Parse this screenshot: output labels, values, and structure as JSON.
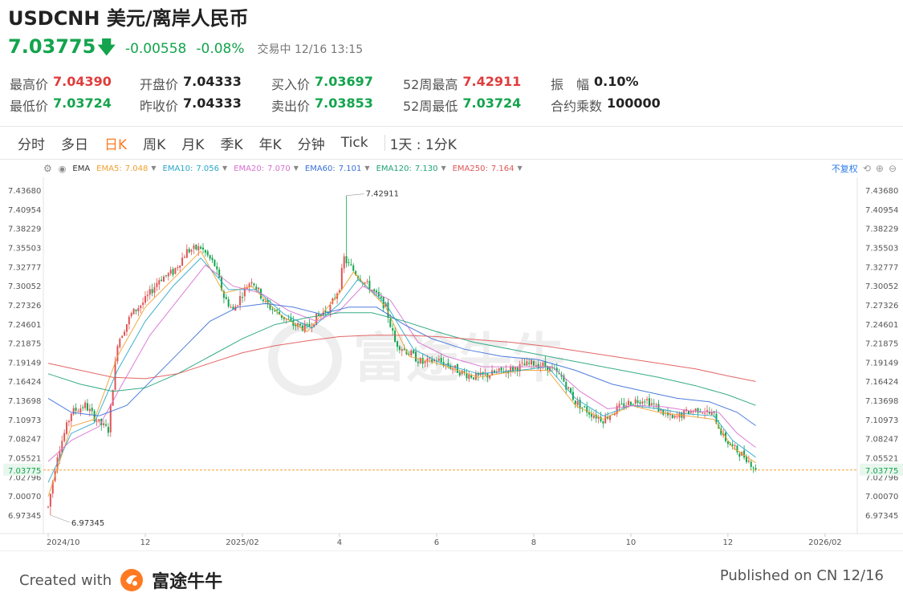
{
  "header": {
    "title": "USDCNH 美元/离岸人民币",
    "price": "7.03775",
    "change": "-0.00558",
    "change_pct": "-0.08%",
    "status": "交易中 12/16 13:15"
  },
  "stats": {
    "row1": [
      {
        "label": "最高价",
        "value": "7.04390",
        "color": "red"
      },
      {
        "label": "开盘价",
        "value": "7.04333",
        "color": "black"
      },
      {
        "label": "买入价",
        "value": "7.03697",
        "color": "green"
      },
      {
        "label": "52周最高",
        "value": "7.42911",
        "color": "red"
      },
      {
        "label": "振　幅",
        "value": "0.10%",
        "color": "black"
      }
    ],
    "row2": [
      {
        "label": "最低价",
        "value": "7.03724",
        "color": "green"
      },
      {
        "label": "昨收价",
        "value": "7.04333",
        "color": "black"
      },
      {
        "label": "卖出价",
        "value": "7.03853",
        "color": "green"
      },
      {
        "label": "52周最低",
        "value": "7.03724",
        "color": "green"
      },
      {
        "label": "合约乘数",
        "value": "100000",
        "color": "black"
      }
    ]
  },
  "tabs": [
    "分时",
    "多日",
    "日K",
    "周K",
    "月K",
    "季K",
    "年K",
    "分钟",
    "Tick"
  ],
  "active_tab": "日K",
  "range_tab": "1天 : 1分K",
  "indicators": {
    "main": "EMA",
    "items": [
      {
        "label": "EMA5:",
        "value": "7.048",
        "color": "#f0a030"
      },
      {
        "label": "EMA10:",
        "value": "7.056",
        "color": "#2aa7c9"
      },
      {
        "label": "EMA20:",
        "value": "7.070",
        "color": "#d86fd0"
      },
      {
        "label": "EMA60:",
        "value": "7.101",
        "color": "#3a6fd8"
      },
      {
        "label": "EMA120:",
        "value": "7.130",
        "color": "#1fa37a"
      },
      {
        "label": "EMA250:",
        "value": "7.164",
        "color": "#e05555"
      }
    ],
    "adjust": "不复权"
  },
  "chart_data": {
    "type": "candlestick",
    "y_ticks": [
      "7.43680",
      "7.40954",
      "7.38229",
      "7.35503",
      "7.32777",
      "7.30052",
      "7.27326",
      "7.24601",
      "7.21875",
      "7.19149",
      "7.16424",
      "7.13698",
      "7.10973",
      "7.08247",
      "7.05521",
      "7.02796",
      "7.00070",
      "6.97345"
    ],
    "ylim": [
      6.97345,
      7.4368
    ],
    "x_ticks": [
      {
        "label": "2024/10",
        "idx": 0
      },
      {
        "label": "12",
        "idx": 42
      },
      {
        "label": "2025/02",
        "idx": 84
      },
      {
        "label": "4",
        "idx": 126
      },
      {
        "label": "6",
        "idx": 168
      },
      {
        "label": "8",
        "idx": 210
      },
      {
        "label": "10",
        "idx": 252
      },
      {
        "label": "12",
        "idx": 294
      },
      {
        "label": "2026/02",
        "idx": 336
      }
    ],
    "n_slots": 352,
    "current_price": "7.03775",
    "max_label": "7.42911",
    "min_label": "6.97345",
    "current_value": 7.03775,
    "colors": {
      "up": "#e05555",
      "down": "#14a44d"
    },
    "candle_path": [
      [
        0,
        6.985
      ],
      [
        4,
        7.06
      ],
      [
        10,
        7.12
      ],
      [
        16,
        7.13
      ],
      [
        22,
        7.105
      ],
      [
        26,
        7.095
      ],
      [
        30,
        7.22
      ],
      [
        36,
        7.26
      ],
      [
        42,
        7.28
      ],
      [
        48,
        7.31
      ],
      [
        54,
        7.32
      ],
      [
        60,
        7.35
      ],
      [
        66,
        7.355
      ],
      [
        72,
        7.33
      ],
      [
        76,
        7.285
      ],
      [
        80,
        7.265
      ],
      [
        84,
        7.29
      ],
      [
        88,
        7.31
      ],
      [
        94,
        7.275
      ],
      [
        100,
        7.26
      ],
      [
        106,
        7.245
      ],
      [
        112,
        7.24
      ],
      [
        116,
        7.255
      ],
      [
        122,
        7.27
      ],
      [
        126,
        7.3
      ],
      [
        128,
        7.34
      ],
      [
        130,
        7.33
      ],
      [
        134,
        7.315
      ],
      [
        140,
        7.295
      ],
      [
        146,
        7.27
      ],
      [
        150,
        7.22
      ],
      [
        156,
        7.205
      ],
      [
        162,
        7.19
      ],
      [
        168,
        7.195
      ],
      [
        174,
        7.185
      ],
      [
        180,
        7.175
      ],
      [
        186,
        7.17
      ],
      [
        192,
        7.175
      ],
      [
        198,
        7.18
      ],
      [
        204,
        7.185
      ],
      [
        210,
        7.19
      ],
      [
        216,
        7.185
      ],
      [
        222,
        7.17
      ],
      [
        228,
        7.135
      ],
      [
        234,
        7.12
      ],
      [
        240,
        7.11
      ],
      [
        246,
        7.125
      ],
      [
        252,
        7.135
      ],
      [
        258,
        7.14
      ],
      [
        264,
        7.125
      ],
      [
        270,
        7.11
      ],
      [
        276,
        7.12
      ],
      [
        282,
        7.125
      ],
      [
        288,
        7.115
      ],
      [
        292,
        7.085
      ],
      [
        296,
        7.07
      ],
      [
        302,
        7.055
      ],
      [
        306,
        7.04
      ]
    ],
    "ema_lines": [
      {
        "name": "EMA5",
        "color": "#f0a030",
        "points": [
          [
            0,
            7.0
          ],
          [
            10,
            7.1
          ],
          [
            20,
            7.11
          ],
          [
            30,
            7.2
          ],
          [
            42,
            7.27
          ],
          [
            54,
            7.31
          ],
          [
            66,
            7.35
          ],
          [
            76,
            7.29
          ],
          [
            88,
            7.3
          ],
          [
            100,
            7.26
          ],
          [
            112,
            7.235
          ],
          [
            126,
            7.29
          ],
          [
            132,
            7.32
          ],
          [
            146,
            7.27
          ],
          [
            156,
            7.2
          ],
          [
            168,
            7.19
          ],
          [
            186,
            7.17
          ],
          [
            204,
            7.18
          ],
          [
            216,
            7.18
          ],
          [
            228,
            7.13
          ],
          [
            240,
            7.11
          ],
          [
            252,
            7.13
          ],
          [
            264,
            7.12
          ],
          [
            276,
            7.115
          ],
          [
            288,
            7.11
          ],
          [
            296,
            7.07
          ],
          [
            306,
            7.048
          ]
        ]
      },
      {
        "name": "EMA10",
        "color": "#2aa7c9",
        "points": [
          [
            0,
            7.02
          ],
          [
            10,
            7.09
          ],
          [
            20,
            7.105
          ],
          [
            30,
            7.18
          ],
          [
            42,
            7.25
          ],
          [
            54,
            7.3
          ],
          [
            66,
            7.34
          ],
          [
            78,
            7.295
          ],
          [
            90,
            7.295
          ],
          [
            102,
            7.26
          ],
          [
            114,
            7.24
          ],
          [
            126,
            7.275
          ],
          [
            134,
            7.31
          ],
          [
            146,
            7.275
          ],
          [
            158,
            7.21
          ],
          [
            170,
            7.19
          ],
          [
            186,
            7.175
          ],
          [
            204,
            7.18
          ],
          [
            216,
            7.185
          ],
          [
            228,
            7.14
          ],
          [
            240,
            7.115
          ],
          [
            252,
            7.13
          ],
          [
            264,
            7.125
          ],
          [
            276,
            7.118
          ],
          [
            288,
            7.115
          ],
          [
            296,
            7.08
          ],
          [
            306,
            7.056
          ]
        ]
      },
      {
        "name": "EMA20",
        "color": "#d86fd0",
        "points": [
          [
            0,
            7.05
          ],
          [
            10,
            7.08
          ],
          [
            22,
            7.1
          ],
          [
            32,
            7.16
          ],
          [
            44,
            7.23
          ],
          [
            56,
            7.28
          ],
          [
            68,
            7.33
          ],
          [
            80,
            7.3
          ],
          [
            92,
            7.29
          ],
          [
            104,
            7.265
          ],
          [
            116,
            7.25
          ],
          [
            126,
            7.265
          ],
          [
            136,
            7.3
          ],
          [
            148,
            7.28
          ],
          [
            160,
            7.22
          ],
          [
            172,
            7.2
          ],
          [
            188,
            7.185
          ],
          [
            204,
            7.185
          ],
          [
            218,
            7.185
          ],
          [
            230,
            7.15
          ],
          [
            242,
            7.125
          ],
          [
            254,
            7.13
          ],
          [
            266,
            7.128
          ],
          [
            278,
            7.122
          ],
          [
            290,
            7.12
          ],
          [
            298,
            7.09
          ],
          [
            306,
            7.07
          ]
        ]
      },
      {
        "name": "EMA60",
        "color": "#3a6fd8",
        "points": [
          [
            0,
            7.14
          ],
          [
            10,
            7.12
          ],
          [
            22,
            7.115
          ],
          [
            34,
            7.13
          ],
          [
            46,
            7.17
          ],
          [
            58,
            7.21
          ],
          [
            70,
            7.25
          ],
          [
            82,
            7.27
          ],
          [
            94,
            7.275
          ],
          [
            106,
            7.27
          ],
          [
            118,
            7.26
          ],
          [
            130,
            7.27
          ],
          [
            142,
            7.27
          ],
          [
            154,
            7.245
          ],
          [
            166,
            7.225
          ],
          [
            180,
            7.21
          ],
          [
            196,
            7.2
          ],
          [
            212,
            7.195
          ],
          [
            228,
            7.18
          ],
          [
            244,
            7.16
          ],
          [
            258,
            7.15
          ],
          [
            272,
            7.14
          ],
          [
            286,
            7.135
          ],
          [
            298,
            7.12
          ],
          [
            306,
            7.101
          ]
        ]
      },
      {
        "name": "EMA120",
        "color": "#1fa37a",
        "points": [
          [
            0,
            7.175
          ],
          [
            14,
            7.16
          ],
          [
            28,
            7.15
          ],
          [
            42,
            7.155
          ],
          [
            56,
            7.175
          ],
          [
            70,
            7.2
          ],
          [
            84,
            7.225
          ],
          [
            98,
            7.245
          ],
          [
            112,
            7.255
          ],
          [
            126,
            7.262
          ],
          [
            140,
            7.262
          ],
          [
            154,
            7.25
          ],
          [
            168,
            7.235
          ],
          [
            184,
            7.22
          ],
          [
            200,
            7.21
          ],
          [
            216,
            7.2
          ],
          [
            232,
            7.19
          ],
          [
            248,
            7.18
          ],
          [
            264,
            7.17
          ],
          [
            280,
            7.158
          ],
          [
            294,
            7.145
          ],
          [
            306,
            7.13
          ]
        ]
      },
      {
        "name": "EMA250",
        "color": "#e05555",
        "points": [
          [
            0,
            7.19
          ],
          [
            14,
            7.18
          ],
          [
            28,
            7.17
          ],
          [
            42,
            7.168
          ],
          [
            56,
            7.175
          ],
          [
            70,
            7.19
          ],
          [
            84,
            7.205
          ],
          [
            98,
            7.215
          ],
          [
            112,
            7.222
          ],
          [
            126,
            7.228
          ],
          [
            140,
            7.23
          ],
          [
            154,
            7.23
          ],
          [
            168,
            7.228
          ],
          [
            184,
            7.224
          ],
          [
            200,
            7.22
          ],
          [
            216,
            7.214
          ],
          [
            232,
            7.206
          ],
          [
            248,
            7.198
          ],
          [
            264,
            7.19
          ],
          [
            280,
            7.182
          ],
          [
            294,
            7.172
          ],
          [
            306,
            7.164
          ]
        ]
      }
    ]
  },
  "footer": {
    "created_with": "Created with",
    "brand": "富途牛牛",
    "published": "Published on CN 12/16"
  }
}
